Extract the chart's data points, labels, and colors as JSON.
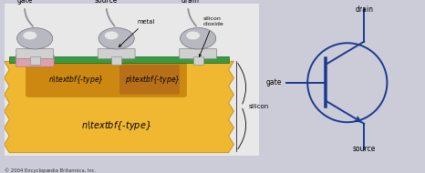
{
  "bg_color": "#ccccd8",
  "bg_left": "#e8e8e8",
  "silicon_color": "#f0b830",
  "silicon_dark": "#c89018",
  "green_layer": "#3a9a40",
  "pink_region": "#dda0b0",
  "metal_color": "#d0d0d0",
  "metal_edge": "#888888",
  "nwell_color": "#cc8810",
  "pwell_color": "#b87018",
  "circuit_color": "#1a3a90",
  "text_color": "#000000",
  "copyright": "© 2004 Encyclopædia Britannica, Inc.",
  "labels": {
    "gate": "gate",
    "source": "source",
    "drain": "drain",
    "metal": "metal",
    "silicon_dioxide": "silicon\ndioxide",
    "n_type_well": "n-type",
    "p_type_well": "p-type",
    "n_type_sub": "n-type",
    "silicon": "silicon"
  }
}
